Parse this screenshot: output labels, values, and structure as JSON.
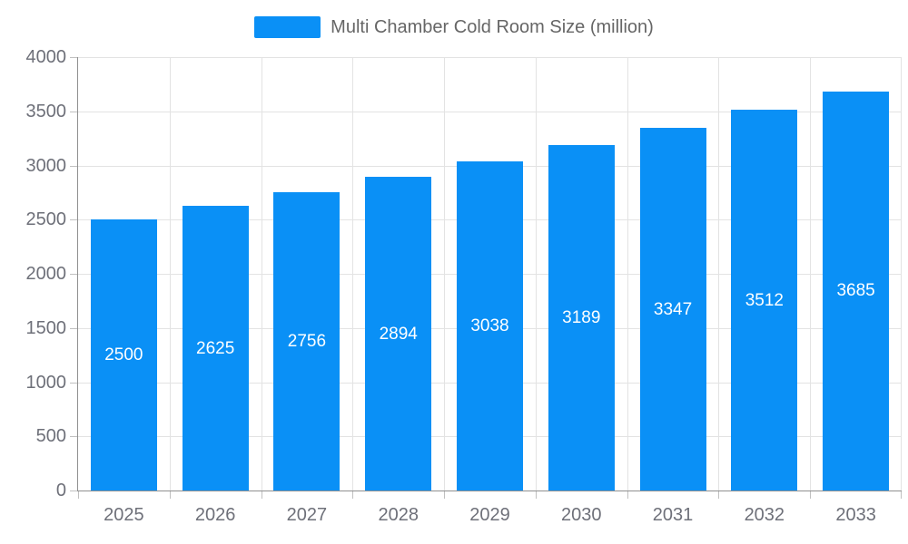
{
  "chart_data": {
    "type": "bar",
    "title": "Multi Chamber Cold Room Size (million)",
    "categories": [
      "2025",
      "2026",
      "2027",
      "2028",
      "2029",
      "2030",
      "2031",
      "2032",
      "2033"
    ],
    "series": [
      {
        "name": "Multi Chamber Cold Room Size (million)",
        "values": [
          2500,
          2625,
          2756,
          2894,
          3038,
          3189,
          3347,
          3512,
          3685
        ]
      }
    ],
    "bar_value_labels": [
      "2500",
      "2625",
      "2756",
      "2894",
      "3038",
      "3189",
      "3347",
      "3512",
      "3685"
    ],
    "xlabel": "",
    "ylabel": "",
    "ylim": [
      0,
      4000
    ],
    "ytick_step": 500,
    "ytick_labels": [
      "0",
      "500",
      "1000",
      "1500",
      "2000",
      "2500",
      "3000",
      "3500",
      "4000"
    ],
    "grid": true,
    "legend_position": "top-center",
    "colors": {
      "bar": "#0a90f6",
      "bar_label": "#ffffff",
      "axis_label": "#6e7079",
      "legend_text": "#666666",
      "gridline": "#e3e3e3",
      "axis_line": "#8f8f8f",
      "background": "#ffffff"
    }
  }
}
